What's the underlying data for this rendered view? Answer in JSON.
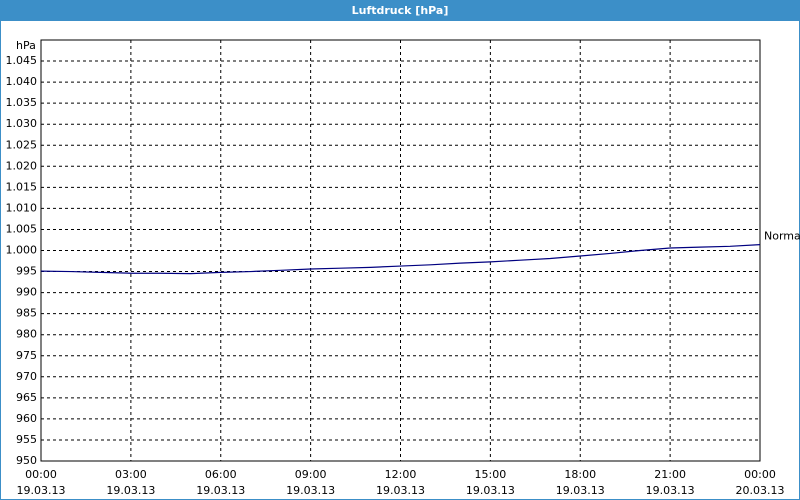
{
  "chart_data": {
    "type": "line",
    "title": "Luftdruck [hPa]",
    "y_unit": "hPa",
    "x": [
      0,
      1,
      2,
      3,
      4,
      5,
      6,
      7,
      8,
      9,
      10,
      11,
      12,
      13,
      14,
      15,
      16,
      17,
      18,
      19,
      20,
      21,
      22,
      23,
      24
    ],
    "series": [
      {
        "name": "Normal",
        "color": "#000080",
        "values": [
          995.1,
          995.0,
          994.8,
          994.6,
          994.6,
          994.5,
          994.8,
          995.0,
          995.3,
          995.6,
          995.8,
          996.0,
          996.3,
          996.6,
          997.0,
          997.3,
          997.7,
          998.1,
          998.7,
          999.3,
          1000.0,
          1000.6,
          1000.8,
          1001.0,
          1001.4
        ]
      }
    ],
    "xlim": [
      0,
      24
    ],
    "xticks": [
      {
        "value": 0,
        "label": "00:00"
      },
      {
        "value": 3,
        "label": "03:00"
      },
      {
        "value": 6,
        "label": "06:00"
      },
      {
        "value": 9,
        "label": "09:00"
      },
      {
        "value": 12,
        "label": "12:00"
      },
      {
        "value": 15,
        "label": "15:00"
      },
      {
        "value": 18,
        "label": "18:00"
      },
      {
        "value": 21,
        "label": "21:00"
      },
      {
        "value": 24,
        "label": "00:00"
      }
    ],
    "xtick_dates": [
      "19.03.13",
      "19.03.13",
      "19.03.13",
      "19.03.13",
      "19.03.13",
      "19.03.13",
      "19.03.13",
      "19.03.13",
      "20.03.13"
    ],
    "ylim": [
      950,
      1050
    ],
    "yticks": [
      950,
      955,
      960,
      965,
      970,
      975,
      980,
      985,
      990,
      995,
      {
        "value": 1000,
        "label": "1.000"
      },
      {
        "value": 1005,
        "label": "1.005"
      },
      {
        "value": 1010,
        "label": "1.010"
      },
      {
        "value": 1015,
        "label": "1.015"
      },
      {
        "value": 1020,
        "label": "1.020"
      },
      {
        "value": 1025,
        "label": "1.025"
      },
      {
        "value": 1030,
        "label": "1.030"
      },
      {
        "value": 1035,
        "label": "1.035"
      },
      {
        "value": 1040,
        "label": "1.040"
      },
      {
        "value": 1045,
        "label": "1.045"
      }
    ],
    "grid": true
  }
}
